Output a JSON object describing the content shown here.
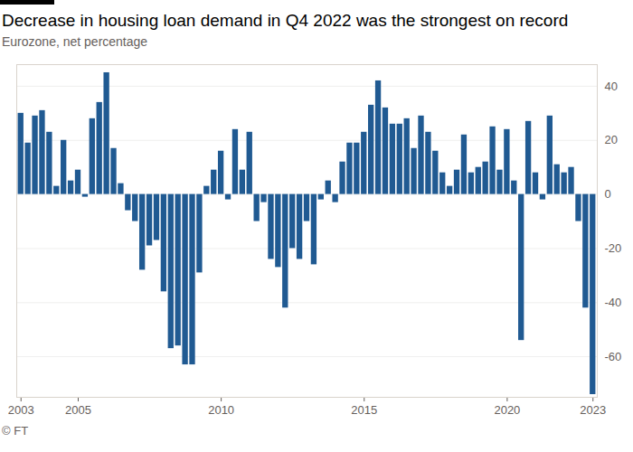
{
  "chart_data": {
    "type": "bar",
    "title": "Decrease in housing loan demand in Q4 2022 was the strongest on record",
    "subtitle": "Eurozone, net percentage",
    "source": "© FT",
    "categories": [
      "2003",
      null,
      null,
      null,
      null,
      null,
      null,
      null,
      "2005",
      null,
      null,
      null,
      null,
      null,
      null,
      null,
      null,
      null,
      null,
      null,
      null,
      null,
      null,
      null,
      null,
      null,
      null,
      null,
      "2010",
      null,
      null,
      null,
      null,
      null,
      null,
      null,
      null,
      null,
      null,
      null,
      null,
      null,
      null,
      null,
      null,
      null,
      null,
      null,
      "2015",
      null,
      null,
      null,
      null,
      null,
      null,
      null,
      null,
      null,
      null,
      null,
      null,
      null,
      null,
      null,
      null,
      null,
      null,
      null,
      "2020",
      null,
      null,
      null,
      null,
      null,
      null,
      null,
      null,
      null,
      null,
      null,
      "2023"
    ],
    "values": [
      30,
      19,
      29,
      31,
      23,
      3,
      20,
      5,
      9,
      -1,
      28,
      34,
      45,
      17,
      4,
      -6,
      -10,
      -28,
      -19,
      -17,
      -36,
      -57,
      -56,
      -63,
      -63,
      -29,
      3,
      9,
      16,
      -2,
      24,
      9,
      23,
      -10,
      -3,
      -24,
      -27,
      -42,
      -20,
      -24,
      -10,
      -26,
      -2,
      5,
      -3,
      12,
      19,
      19,
      23,
      33,
      42,
      32,
      26,
      26,
      28,
      17,
      29,
      23,
      16,
      8,
      3,
      9,
      22,
      8,
      10,
      12,
      25,
      9,
      24,
      5,
      -54,
      27,
      8,
      -2,
      29,
      11,
      8,
      10,
      -10,
      -42,
      -74
    ],
    "color": "#205a92",
    "ylim": [
      -75,
      48
    ],
    "yticks": [
      -60,
      -40,
      -20,
      0,
      20,
      40
    ],
    "grid": true
  }
}
